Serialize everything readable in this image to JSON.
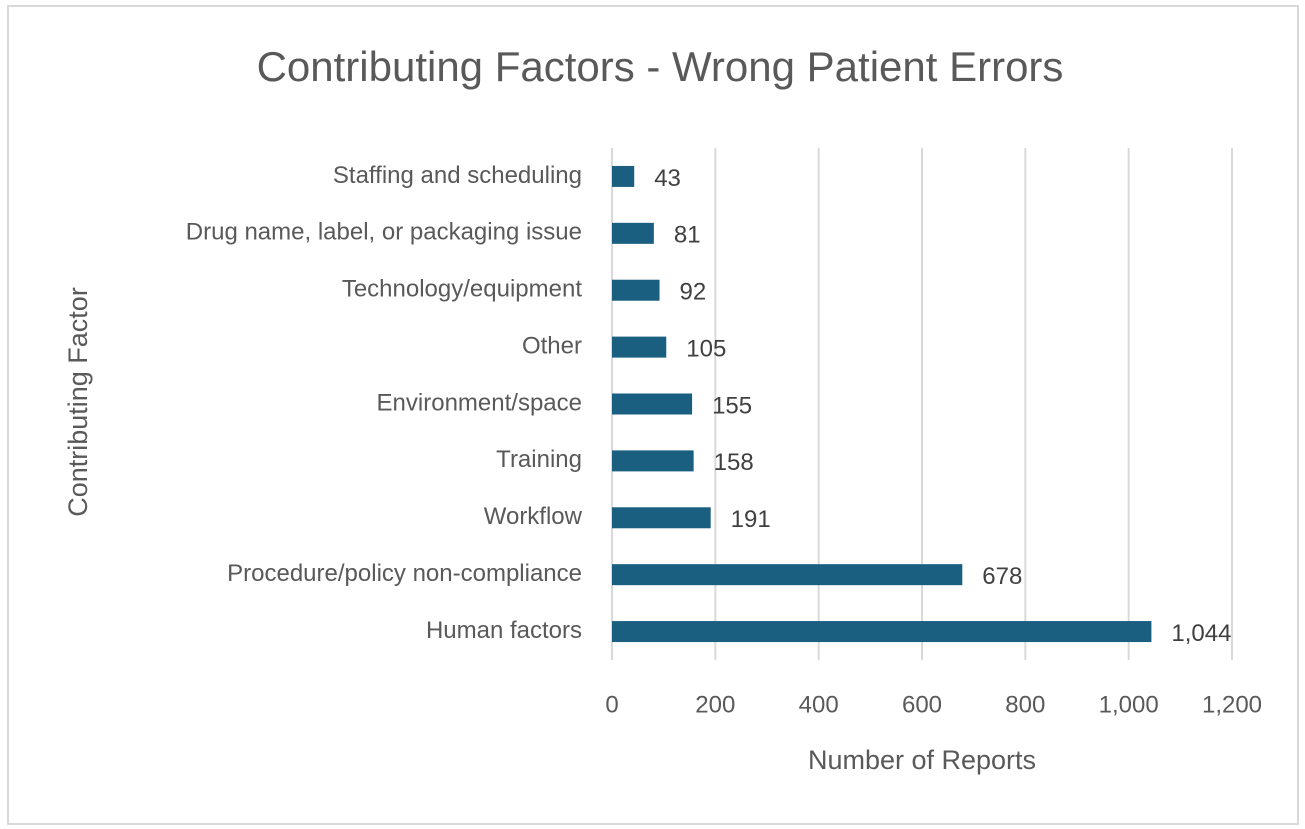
{
  "chart_data": {
    "type": "bar",
    "orientation": "horizontal",
    "title": "Contributing Factors - Wrong Patient Errors",
    "x_label": "Number of Reports",
    "y_label": "Contributing Factor",
    "categories": [
      "Staffing and scheduling",
      "Drug name, label, or packaging issue",
      "Technology/equipment",
      "Other",
      "Environment/space",
      "Training",
      "Workflow",
      "Procedure/policy non-compliance",
      "Human factors"
    ],
    "values": [
      43,
      81,
      92,
      105,
      155,
      158,
      191,
      678,
      1044
    ],
    "value_labels": [
      "43",
      "81",
      "92",
      "105",
      "155",
      "158",
      "191",
      "678",
      "1,044"
    ],
    "color": "#1a5e80",
    "xlim": [
      0,
      1200
    ],
    "xticks": [
      0,
      200,
      400,
      600,
      800,
      {
        "value": 1000,
        "label": "1,000"
      },
      {
        "value": 1200,
        "label": "1,200"
      }
    ],
    "grid": true
  }
}
